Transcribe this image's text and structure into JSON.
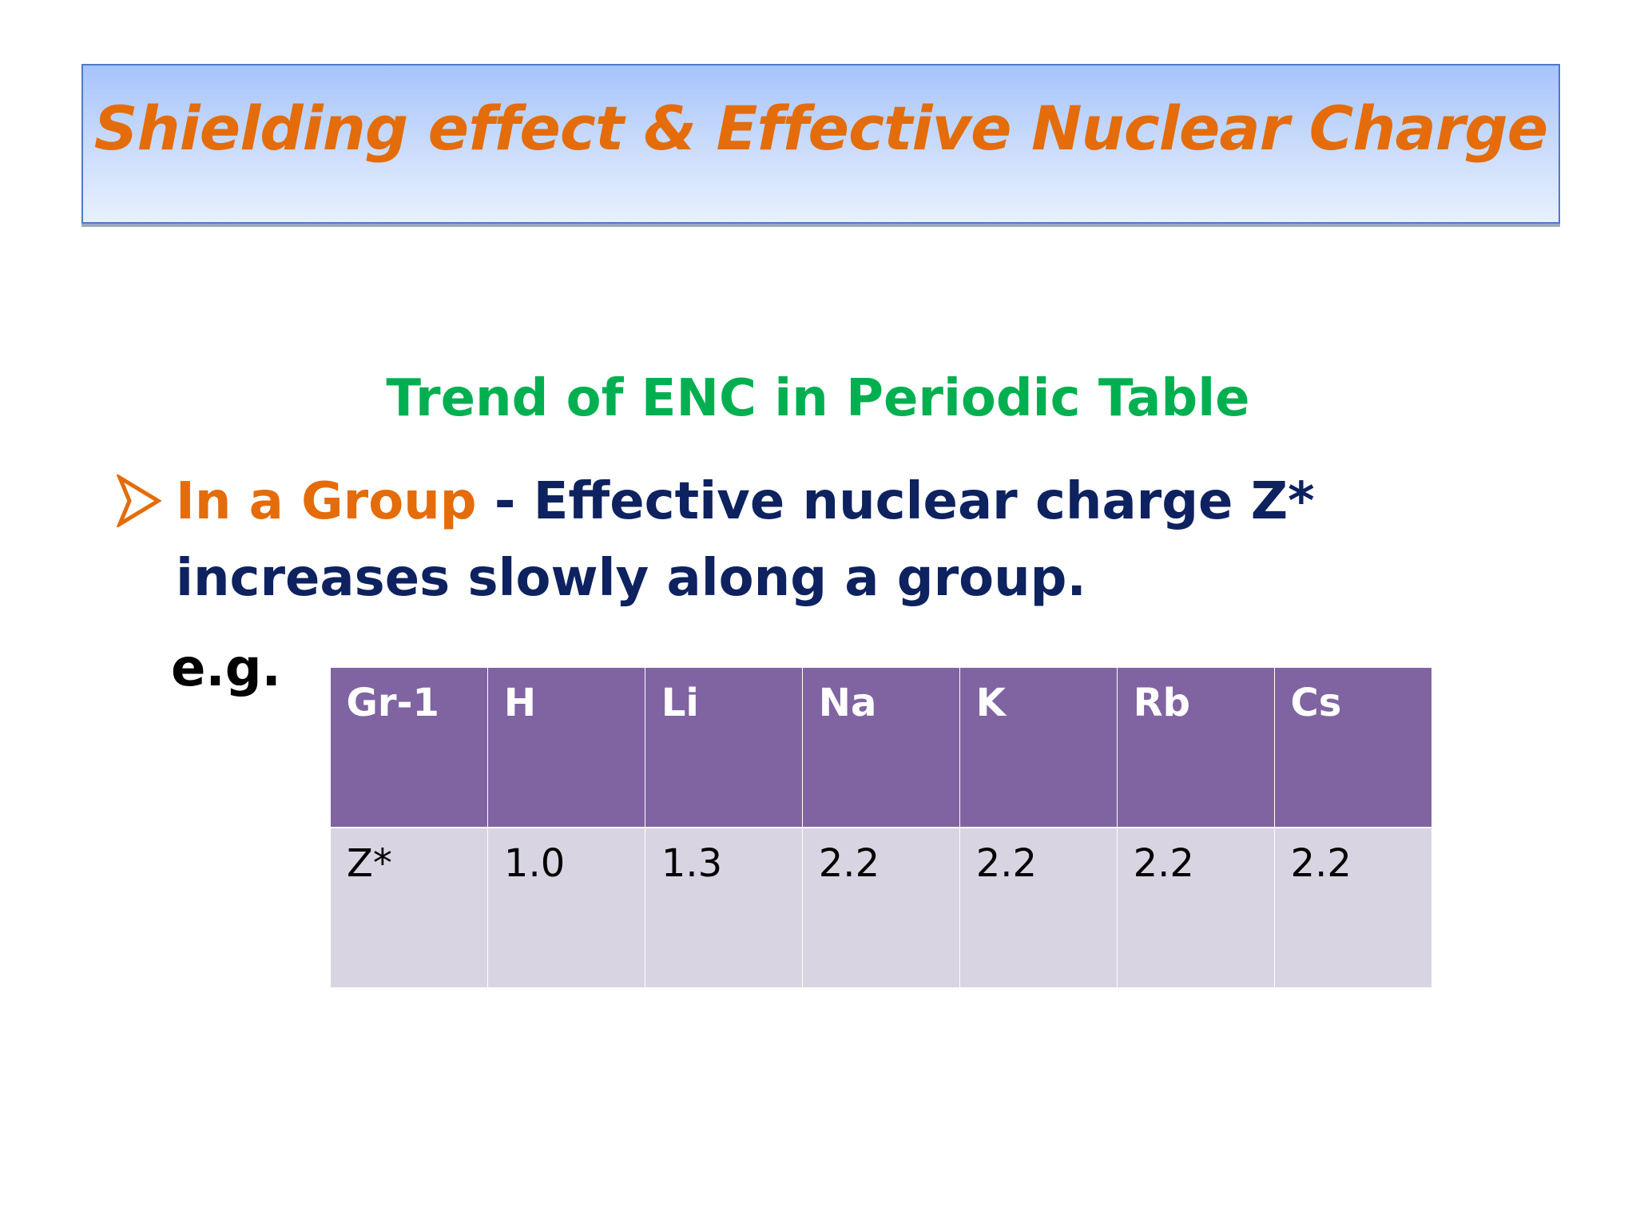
{
  "title": "Shielding effect & Effective Nuclear Charge",
  "subtitle": "Trend of ENC in Periodic Table",
  "bullet": {
    "icon": "arrow-bullet-icon",
    "emphasis": "In a Group",
    "text": " - Effective nuclear charge Z* increases slowly along a  group."
  },
  "example_label": "e.g.",
  "table": {
    "header": [
      "Gr-1",
      "H",
      "Li",
      "Na",
      "K",
      "Rb",
      "Cs"
    ],
    "values": [
      "Z*",
      "1.0",
      "1.3",
      "2.2",
      "2.2",
      "2.2",
      "2.2"
    ]
  },
  "colors": {
    "title": "#e46c0a",
    "subtitle": "#00b050",
    "body_text": "#0e2260",
    "table_header_bg": "#8064a2",
    "table_row_bg": "#d8d4e1"
  }
}
